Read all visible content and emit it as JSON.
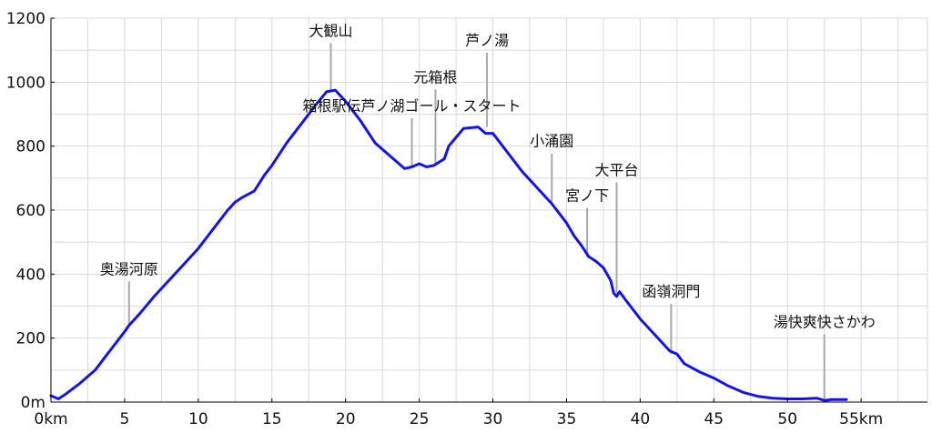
{
  "chart_data": {
    "type": "line",
    "title": "",
    "xlabel": "",
    "ylabel": "",
    "xlim": [
      0,
      59.5
    ],
    "ylim": [
      0,
      1200
    ],
    "grid": true,
    "line_color": "#1414e6",
    "grid_color": "#d9d9d9",
    "marker_color": "#a8a8a8",
    "x_ticks": [
      {
        "value": 0,
        "label": "0km"
      },
      {
        "value": 5,
        "label": "5"
      },
      {
        "value": 10,
        "label": "10"
      },
      {
        "value": 15,
        "label": "15"
      },
      {
        "value": 20,
        "label": "20"
      },
      {
        "value": 25,
        "label": "25"
      },
      {
        "value": 30,
        "label": "30"
      },
      {
        "value": 35,
        "label": "35"
      },
      {
        "value": 40,
        "label": "40"
      },
      {
        "value": 45,
        "label": "45"
      },
      {
        "value": 50,
        "label": "50"
      },
      {
        "value": 55,
        "label": "55km"
      }
    ],
    "y_ticks": [
      {
        "value": 0,
        "label": "0m"
      },
      {
        "value": 200,
        "label": "200"
      },
      {
        "value": 400,
        "label": "400"
      },
      {
        "value": 600,
        "label": "600"
      },
      {
        "value": 800,
        "label": "800"
      },
      {
        "value": 1000,
        "label": "1000"
      },
      {
        "value": 1200,
        "label": "1200"
      }
    ],
    "series": [
      {
        "x": [
          0,
          0.5,
          1,
          2,
          3,
          4,
          5,
          5.3,
          6,
          7,
          8,
          9,
          10,
          11,
          12,
          12.5,
          13,
          13.8,
          14.5,
          15,
          16,
          17,
          18,
          18.7,
          19.3,
          20,
          21,
          22,
          23,
          24,
          24.5,
          25,
          25.5,
          26,
          26.7,
          27,
          28,
          29,
          29.5,
          30,
          31,
          32,
          33,
          34,
          35,
          35.5,
          36,
          36.5,
          37,
          37.5,
          38,
          38.2,
          38.4,
          38.6,
          39,
          40,
          41,
          42,
          42.5,
          43,
          44,
          45,
          46,
          47,
          48,
          49,
          50,
          51,
          52,
          52.5,
          53,
          54
        ],
        "y": [
          20,
          10,
          25,
          60,
          100,
          160,
          220,
          240,
          275,
          330,
          380,
          430,
          480,
          540,
          600,
          625,
          640,
          660,
          710,
          740,
          810,
          870,
          930,
          970,
          975,
          940,
          880,
          810,
          770,
          730,
          735,
          745,
          735,
          740,
          760,
          800,
          855,
          860,
          840,
          840,
          780,
          720,
          670,
          620,
          560,
          520,
          490,
          455,
          440,
          420,
          380,
          340,
          330,
          345,
          320,
          260,
          210,
          160,
          150,
          120,
          95,
          75,
          50,
          30,
          18,
          12,
          10,
          10,
          12,
          5,
          8,
          8
        ]
      }
    ],
    "annotations": [
      {
        "label": "奥湯河原",
        "x": 5.3,
        "y": 240,
        "label_y": 400
      },
      {
        "label": "大観山",
        "x": 19.0,
        "y": 975,
        "label_y": 1145
      },
      {
        "label": "箱根駅伝芦ノ湖ゴール・スタート",
        "x": 24.5,
        "y": 735,
        "label_y": 910
      },
      {
        "label": "元箱根",
        "x": 26.1,
        "y": 740,
        "label_y": 1000
      },
      {
        "label": "芦ノ湯",
        "x": 29.6,
        "y": 860,
        "label_y": 1115
      },
      {
        "label": "小涌園",
        "x": 34.0,
        "y": 620,
        "label_y": 800
      },
      {
        "label": "宮ノ下",
        "x": 36.4,
        "y": 455,
        "label_y": 630
      },
      {
        "label": "大平台",
        "x": 38.4,
        "y": 330,
        "label_y": 710
      },
      {
        "label": "函嶺洞門",
        "x": 42.1,
        "y": 150,
        "label_y": 330
      },
      {
        "label": "湯快爽快さかわ",
        "x": 52.5,
        "y": 5,
        "label_y": 235
      }
    ]
  }
}
